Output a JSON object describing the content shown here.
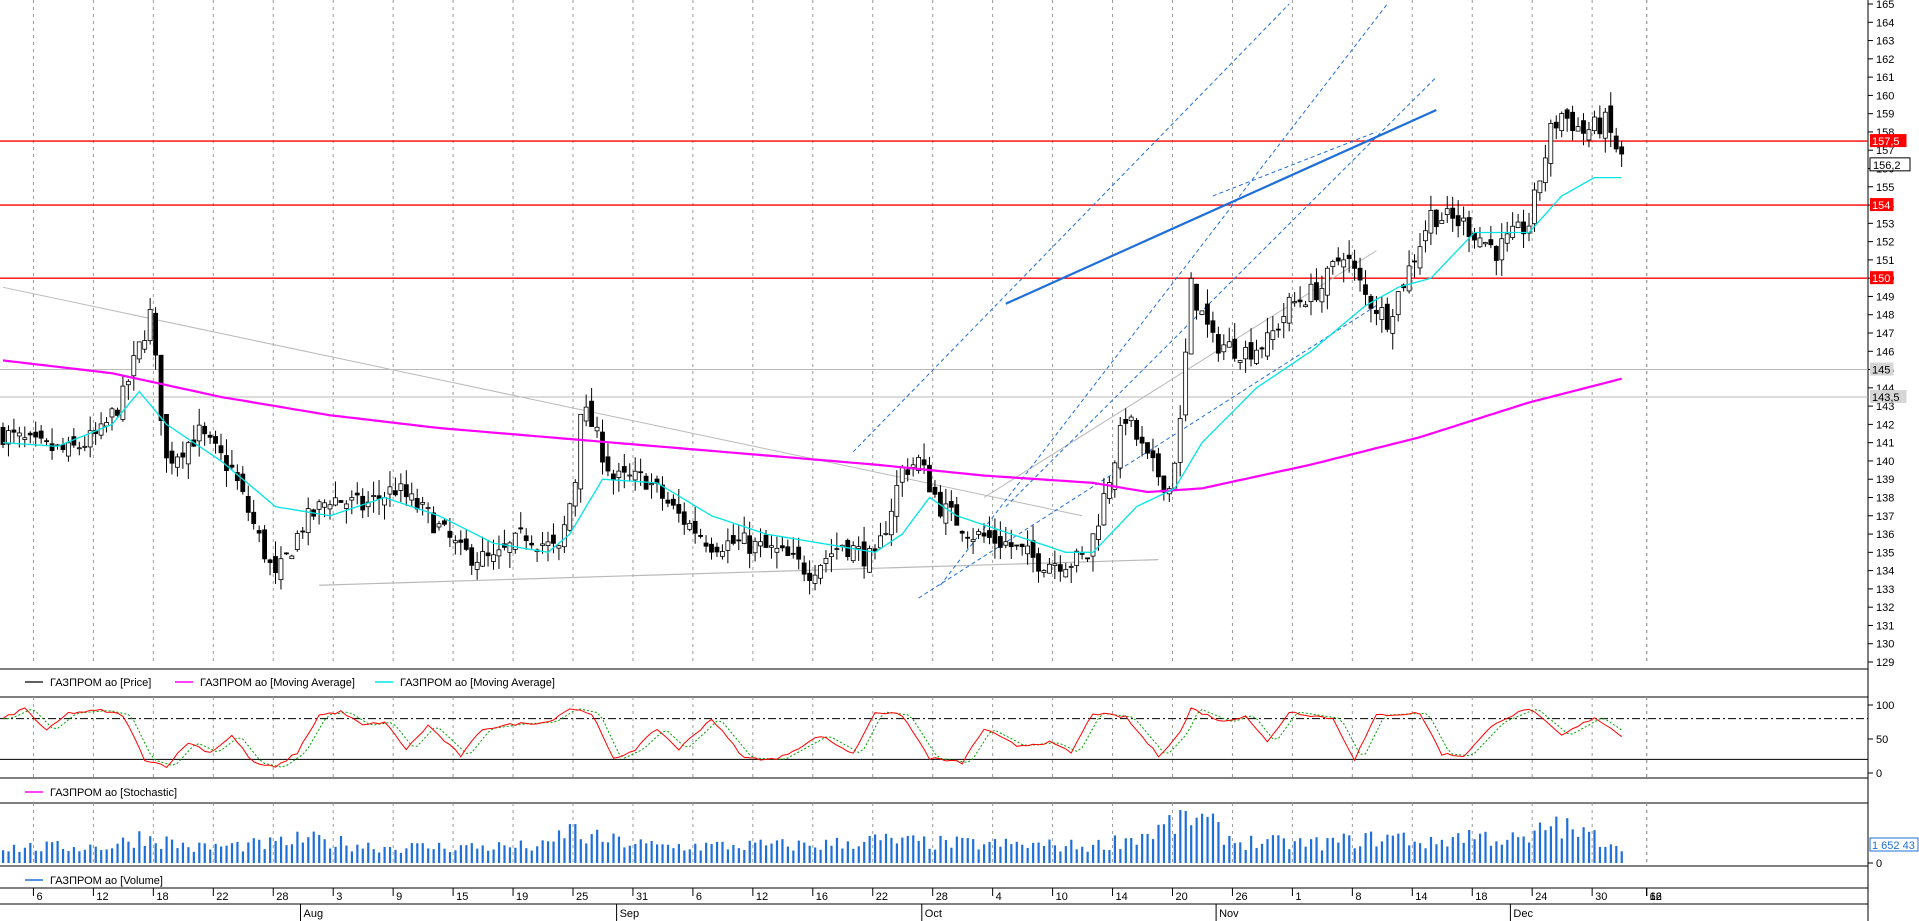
{
  "colors": {
    "background": "#ffffff",
    "grid": "#9a9a9a",
    "up_candle": "#ffffff",
    "down_candle": "#000000",
    "ma_long": "#ff00ff",
    "ma_short": "#00e5e5",
    "resistance": "#ff0000",
    "channel": "#1e6fd9",
    "trend_gray": "#b9b9b9",
    "stoch_k": "#ff0000",
    "stoch_d": "#00a000",
    "volume": "#1e6fd9"
  },
  "legends": {
    "price": "ГАЗПРОМ ао [Price]",
    "ma_long": "ГАЗПРОМ ао [Moving Average]",
    "ma_short": "ГАЗПРОМ ао [Moving Average]",
    "stochastic": "ГАЗПРОМ ао [Stochastic]",
    "volume": "ГАЗПРОМ ао [Volume]"
  },
  "axis_x": {
    "day_labels": [
      "6",
      "12",
      "18",
      "22",
      "28",
      "3",
      "9",
      "15",
      "19",
      "25",
      "31",
      "6",
      "12",
      "16",
      "22",
      "28",
      "4",
      "10",
      "14",
      "20",
      "26",
      "1",
      "8",
      "14",
      "18",
      "24",
      "30",
      "6",
      "12",
      "16"
    ],
    "month_labels": [
      "Aug",
      "Sep",
      "Oct",
      "Nov",
      "Dec"
    ]
  },
  "chart_data": [
    {
      "type": "line",
      "name": "price-panel",
      "ylim": [
        129,
        165
      ],
      "y_ticks": [
        129,
        130,
        131,
        132,
        133,
        134,
        135,
        136,
        137,
        138,
        139,
        140,
        141,
        142,
        143,
        144,
        145,
        146,
        147,
        148,
        149,
        150,
        151,
        152,
        153,
        154,
        155,
        156,
        157,
        158,
        159,
        160,
        161,
        162,
        163,
        164,
        165
      ],
      "series": [
        {
          "name": "ГАЗПРОМ ао [Price]",
          "style": "candlestick",
          "anchors": [
            [
              0,
              141.5
            ],
            [
              6,
              140.8
            ],
            [
              12,
              140.5
            ],
            [
              18,
              141.5
            ],
            [
              22,
              143.5
            ],
            [
              27,
              148
            ],
            [
              30,
              140
            ],
            [
              36,
              141.5
            ],
            [
              42,
              139.5
            ],
            [
              48,
              135
            ],
            [
              50,
              133.5
            ],
            [
              55,
              136.5
            ],
            [
              60,
              138
            ],
            [
              66,
              137.5
            ],
            [
              72,
              138.5
            ],
            [
              78,
              137
            ],
            [
              84,
              135
            ],
            [
              90,
              134.5
            ],
            [
              96,
              136
            ],
            [
              102,
              135
            ],
            [
              105,
              139
            ],
            [
              106,
              143
            ],
            [
              108,
              142
            ],
            [
              112,
              139
            ],
            [
              118,
              139
            ],
            [
              124,
              137
            ],
            [
              130,
              135.5
            ],
            [
              136,
              135.5
            ],
            [
              142,
              135
            ],
            [
              148,
              134
            ],
            [
              154,
              135.5
            ],
            [
              160,
              134.5
            ],
            [
              165,
              139.5
            ],
            [
              168,
              140
            ],
            [
              172,
              137.5
            ],
            [
              178,
              136
            ],
            [
              184,
              135.5
            ],
            [
              190,
              134.5
            ],
            [
              196,
              134.5
            ],
            [
              199,
              134.8
            ],
            [
              202,
              138
            ],
            [
              206,
              142.5
            ],
            [
              210,
              140
            ],
            [
              214,
              138.5
            ],
            [
              216,
              142
            ],
            [
              218,
              149.5
            ],
            [
              222,
              146.5
            ],
            [
              228,
              146
            ],
            [
              232,
              146.5
            ],
            [
              236,
              148.5
            ],
            [
              242,
              149.5
            ],
            [
              246,
              151.5
            ],
            [
              250,
              149
            ],
            [
              254,
              147.8
            ],
            [
              258,
              150.5
            ],
            [
              262,
              153.5
            ],
            [
              268,
              153
            ],
            [
              274,
              151.5
            ],
            [
              280,
              153
            ],
            [
              284,
              158
            ],
            [
              286,
              159
            ],
            [
              290,
              158
            ],
            [
              294,
              158.5
            ],
            [
              297,
              156.5
            ]
          ]
        },
        {
          "name": "ГАЗПРОМ ао [Moving Average]",
          "period": "long",
          "anchors": [
            [
              0,
              145.5
            ],
            [
              20,
              144.8
            ],
            [
              40,
              143.5
            ],
            [
              60,
              142.5
            ],
            [
              80,
              141.8
            ],
            [
              100,
              141.3
            ],
            [
              120,
              140.8
            ],
            [
              140,
              140.3
            ],
            [
              160,
              139.8
            ],
            [
              180,
              139.2
            ],
            [
              200,
              138.8
            ],
            [
              210,
              138.3
            ],
            [
              220,
              138.5
            ],
            [
              240,
              139.8
            ],
            [
              260,
              141.3
            ],
            [
              280,
              143.2
            ],
            [
              297,
              144.5
            ]
          ]
        },
        {
          "name": "ГАЗПРОМ ао [Moving Average]",
          "period": "short",
          "anchors": [
            [
              0,
              141
            ],
            [
              10,
              140.8
            ],
            [
              20,
              142
            ],
            [
              25,
              143.8
            ],
            [
              30,
              142
            ],
            [
              40,
              140
            ],
            [
              50,
              137.5
            ],
            [
              60,
              137
            ],
            [
              70,
              138
            ],
            [
              80,
              137
            ],
            [
              90,
              135.5
            ],
            [
              100,
              135
            ],
            [
              104,
              136
            ],
            [
              110,
              139
            ],
            [
              120,
              138.8
            ],
            [
              130,
              137
            ],
            [
              140,
              136
            ],
            [
              150,
              135.5
            ],
            [
              160,
              135
            ],
            [
              165,
              136
            ],
            [
              170,
              138
            ],
            [
              175,
              137
            ],
            [
              185,
              136
            ],
            [
              195,
              135
            ],
            [
              200,
              135
            ],
            [
              208,
              137.5
            ],
            [
              215,
              138.5
            ],
            [
              220,
              141
            ],
            [
              230,
              144
            ],
            [
              240,
              146
            ],
            [
              250,
              148.5
            ],
            [
              256,
              149.5
            ],
            [
              262,
              150
            ],
            [
              270,
              152.5
            ],
            [
              280,
              152.5
            ],
            [
              286,
              154.5
            ],
            [
              292,
              155.5
            ],
            [
              297,
              155.5
            ]
          ]
        }
      ],
      "horizontal_lines": [
        {
          "value": 157.5,
          "label": "157,5",
          "color": "#ff0000"
        },
        {
          "value": 154,
          "label": "154",
          "color": "#ff0000"
        },
        {
          "value": 150,
          "label": "150",
          "color": "#ff0000"
        },
        {
          "value": 145,
          "label": "145",
          "color": "#b9b9b9"
        },
        {
          "value": 143.5,
          "label": "143,5",
          "color": "#b9b9b9"
        }
      ],
      "last_price_label": "156,2",
      "last_price": 156.2
    },
    {
      "type": "line",
      "name": "ГАЗПРОМ ао [Stochastic]",
      "ylim": [
        0,
        100
      ],
      "y_ticks": [
        0,
        50,
        100
      ],
      "reference_levels": [
        20,
        80
      ],
      "anchors": [
        [
          0,
          80
        ],
        [
          4,
          95
        ],
        [
          8,
          62
        ],
        [
          12,
          88
        ],
        [
          18,
          92
        ],
        [
          22,
          85
        ],
        [
          26,
          20
        ],
        [
          30,
          10
        ],
        [
          34,
          45
        ],
        [
          38,
          30
        ],
        [
          42,
          55
        ],
        [
          46,
          15
        ],
        [
          50,
          8
        ],
        [
          54,
          30
        ],
        [
          58,
          85
        ],
        [
          62,
          90
        ],
        [
          66,
          70
        ],
        [
          70,
          75
        ],
        [
          74,
          35
        ],
        [
          78,
          70
        ],
        [
          84,
          25
        ],
        [
          88,
          65
        ],
        [
          94,
          72
        ],
        [
          100,
          75
        ],
        [
          104,
          95
        ],
        [
          108,
          88
        ],
        [
          112,
          20
        ],
        [
          116,
          35
        ],
        [
          120,
          65
        ],
        [
          124,
          35
        ],
        [
          130,
          80
        ],
        [
          136,
          22
        ],
        [
          142,
          20
        ],
        [
          150,
          55
        ],
        [
          156,
          28
        ],
        [
          160,
          90
        ],
        [
          165,
          85
        ],
        [
          170,
          22
        ],
        [
          176,
          15
        ],
        [
          180,
          65
        ],
        [
          186,
          40
        ],
        [
          192,
          45
        ],
        [
          196,
          30
        ],
        [
          200,
          88
        ],
        [
          206,
          82
        ],
        [
          212,
          25
        ],
        [
          216,
          60
        ],
        [
          218,
          95
        ],
        [
          224,
          75
        ],
        [
          228,
          85
        ],
        [
          232,
          45
        ],
        [
          236,
          90
        ],
        [
          244,
          80
        ],
        [
          248,
          20
        ],
        [
          252,
          85
        ],
        [
          260,
          88
        ],
        [
          264,
          28
        ],
        [
          268,
          25
        ],
        [
          274,
          75
        ],
        [
          280,
          95
        ],
        [
          286,
          55
        ],
        [
          292,
          82
        ],
        [
          297,
          55
        ]
      ]
    },
    {
      "type": "bar",
      "name": "ГАЗПРОМ ао [Volume]",
      "last_value_label": "1 652 43",
      "anchors": [
        [
          0,
          0.32
        ],
        [
          20,
          0.35
        ],
        [
          25,
          0.55
        ],
        [
          28,
          0.5
        ],
        [
          35,
          0.32
        ],
        [
          50,
          0.4
        ],
        [
          55,
          0.5
        ],
        [
          70,
          0.33
        ],
        [
          100,
          0.35
        ],
        [
          104,
          0.75
        ],
        [
          106,
          0.55
        ],
        [
          120,
          0.35
        ],
        [
          150,
          0.38
        ],
        [
          160,
          0.48
        ],
        [
          170,
          0.42
        ],
        [
          200,
          0.35
        ],
        [
          206,
          0.5
        ],
        [
          210,
          0.6
        ],
        [
          218,
          0.98
        ],
        [
          222,
          0.75
        ],
        [
          226,
          0.45
        ],
        [
          240,
          0.4
        ],
        [
          256,
          0.55
        ],
        [
          262,
          0.4
        ],
        [
          268,
          0.6
        ],
        [
          272,
          0.55
        ],
        [
          280,
          0.45
        ],
        [
          284,
          0.85
        ],
        [
          288,
          0.65
        ],
        [
          297,
          0.4
        ]
      ]
    }
  ]
}
